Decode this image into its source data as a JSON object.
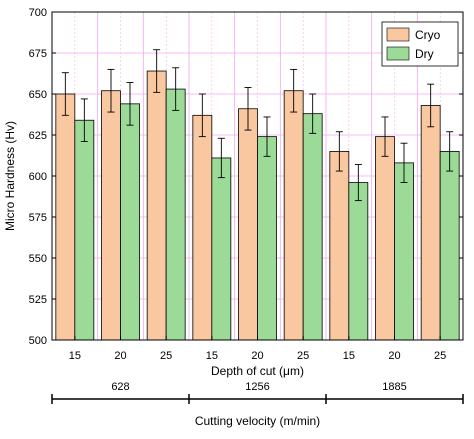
{
  "chart_data": {
    "type": "bar",
    "title": "",
    "ylabel": "Micro Hardness (Hv)",
    "xlabel": "Depth of cut (μm)",
    "group_label": "Cutting velocity (m/min)",
    "ylim": [
      500,
      700
    ],
    "yticks": [
      500,
      525,
      550,
      575,
      600,
      625,
      650,
      675,
      700
    ],
    "categories": [
      "15",
      "20",
      "25",
      "15",
      "20",
      "25",
      "15",
      "20",
      "25"
    ],
    "groups": [
      {
        "label": "628",
        "start": 0,
        "end": 2
      },
      {
        "label": "1256",
        "start": 3,
        "end": 5
      },
      {
        "label": "1885",
        "start": 6,
        "end": 8
      }
    ],
    "series": [
      {
        "name": "Cryo",
        "color": "#F9C8A0",
        "values": [
          650,
          652,
          664,
          637,
          641,
          652,
          615,
          624,
          643
        ],
        "errors": [
          13,
          13,
          13,
          13,
          13,
          13,
          12,
          12,
          13
        ]
      },
      {
        "name": "Dry",
        "color": "#9CDA98",
        "values": [
          634,
          644,
          653,
          611,
          624,
          638,
          596,
          608,
          615
        ],
        "errors": [
          13,
          13,
          13,
          12,
          12,
          12,
          11,
          12,
          12
        ]
      }
    ],
    "grid": true,
    "grid_color": "#F0A8F0",
    "legend": "top-right"
  }
}
